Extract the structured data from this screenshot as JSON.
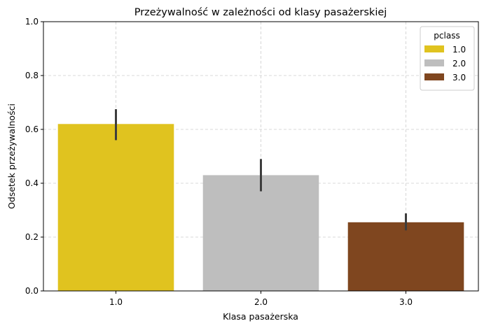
{
  "chart_data": {
    "type": "bar",
    "title": "Przeżywalność w zależności od klasy pasażerskiej",
    "xlabel": "Klasa pasażerska",
    "ylabel": "Odsetek przeżywalności",
    "categories": [
      "1.0",
      "2.0",
      "3.0"
    ],
    "values": [
      0.62,
      0.43,
      0.255
    ],
    "error_bars": [
      [
        0.56,
        0.675
      ],
      [
        0.37,
        0.49
      ],
      [
        0.225,
        0.288
      ]
    ],
    "colors": [
      "#e0c31f",
      "#bebebe",
      "#7f461f"
    ],
    "ylim": [
      0,
      1.0
    ],
    "yticks": [
      "0.0",
      "0.2",
      "0.4",
      "0.6",
      "0.8",
      "1.0"
    ],
    "grid": true,
    "legend": {
      "title": "pclass",
      "placement": "top-right",
      "entries": [
        "1.0",
        "2.0",
        "3.0"
      ]
    }
  }
}
